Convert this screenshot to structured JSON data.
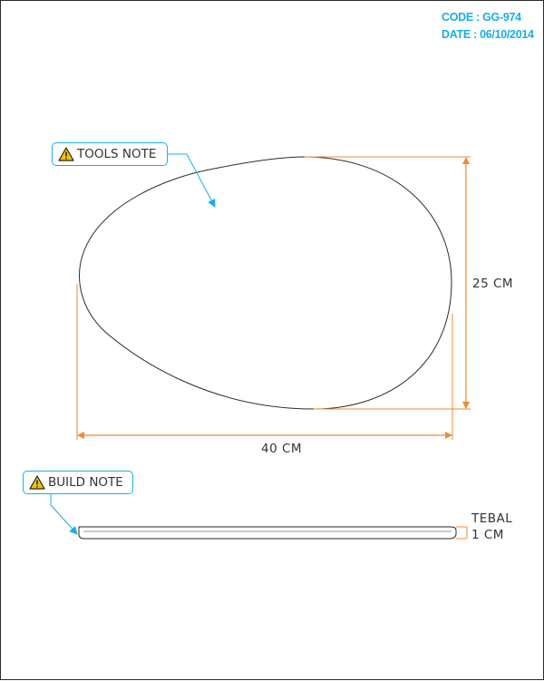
{
  "header": {
    "code": "CODE : GG-974",
    "date": "DATE : 06/10/2014"
  },
  "notes": {
    "tools": "TOOLS NOTE",
    "build": "BUILD NOTE"
  },
  "dimensions": {
    "width": "40 CM",
    "height": "25 CM",
    "thickness_line1": "TEBAL",
    "thickness_line2": "1 CM"
  },
  "colors": {
    "accent": "#19aee6",
    "dimension": "#f08a33",
    "outline": "#2b2b2b",
    "warning": "#f5c400"
  },
  "icons": {
    "note": "warning-triangle-icon"
  }
}
